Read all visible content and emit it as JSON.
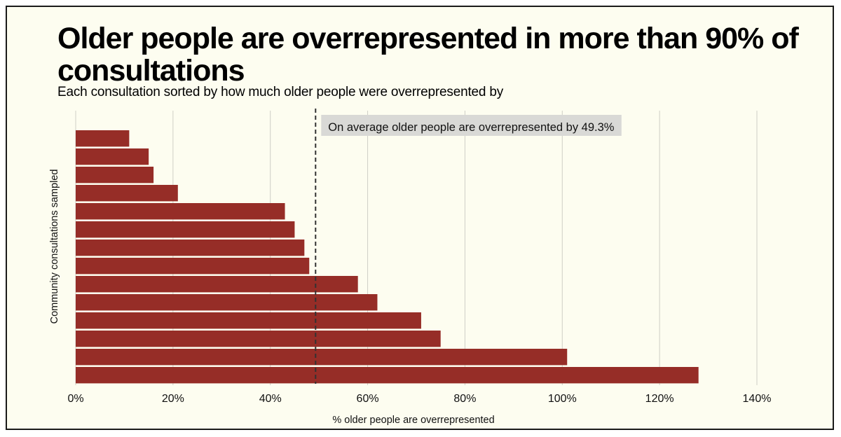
{
  "header": {
    "title": "Older people are overrepresented in more than 90% of consultations",
    "subtitle": "Each consultation sorted by how much older people were overrepresented by"
  },
  "chart_data": {
    "type": "bar",
    "orientation": "horizontal",
    "title": "Older people are overrepresented in more than 90% of consultations",
    "subtitle": "Each consultation sorted by how much older people were overrepresented by",
    "xlabel": "% older people are overrepresented",
    "ylabel": "Community consultations sampled",
    "xlim": [
      0,
      140
    ],
    "xticks": [
      0,
      20,
      40,
      60,
      80,
      100,
      120,
      140
    ],
    "xtick_labels": [
      "0%",
      "20%",
      "40%",
      "60%",
      "80%",
      "100%",
      "120%",
      "140%"
    ],
    "grid": "vertical",
    "values": [
      11,
      15,
      16,
      21,
      43,
      45,
      47,
      48,
      58,
      62,
      71,
      75,
      101,
      128
    ],
    "bar_color": "#962d27",
    "reference_line": {
      "value": 49.3,
      "style": "dashed",
      "label": "On average older people are overrepresented by 49.3%"
    }
  }
}
